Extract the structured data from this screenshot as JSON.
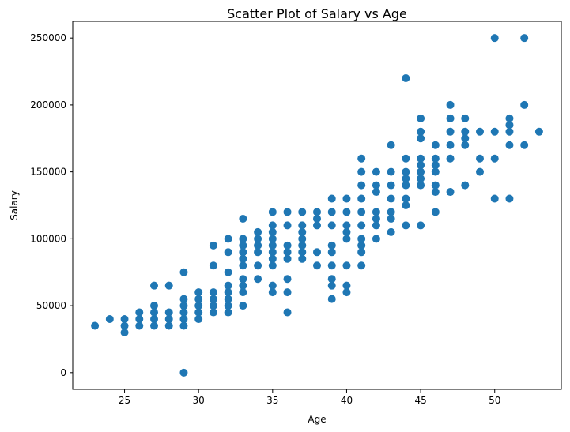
{
  "chart_data": {
    "type": "scatter",
    "title": "Scatter Plot of Salary vs Age",
    "xlabel": "Age",
    "ylabel": "Salary",
    "xlim": [
      21.5,
      54.5
    ],
    "ylim": [
      -12500,
      262500
    ],
    "xticks": [
      25,
      30,
      35,
      40,
      45,
      50
    ],
    "yticks": [
      0,
      50000,
      100000,
      150000,
      200000,
      250000
    ],
    "grid": false,
    "colors": {
      "point": "#1f77b4",
      "axis": "#000000"
    },
    "series": [
      {
        "points": [
          [
            23,
            35000
          ],
          [
            24,
            40000
          ],
          [
            25,
            30000
          ],
          [
            25,
            35000
          ],
          [
            25,
            40000
          ],
          [
            26,
            35000
          ],
          [
            26,
            40000
          ],
          [
            26,
            45000
          ],
          [
            27,
            35000
          ],
          [
            27,
            40000
          ],
          [
            27,
            45000
          ],
          [
            27,
            50000
          ],
          [
            27,
            65000
          ],
          [
            28,
            35000
          ],
          [
            28,
            40000
          ],
          [
            28,
            45000
          ],
          [
            28,
            65000
          ],
          [
            29,
            0
          ],
          [
            29,
            35000
          ],
          [
            29,
            40000
          ],
          [
            29,
            45000
          ],
          [
            29,
            50000
          ],
          [
            29,
            55000
          ],
          [
            29,
            75000
          ],
          [
            30,
            40000
          ],
          [
            30,
            45000
          ],
          [
            30,
            50000
          ],
          [
            30,
            55000
          ],
          [
            30,
            60000
          ],
          [
            31,
            45000
          ],
          [
            31,
            50000
          ],
          [
            31,
            55000
          ],
          [
            31,
            60000
          ],
          [
            31,
            80000
          ],
          [
            31,
            95000
          ],
          [
            32,
            45000
          ],
          [
            32,
            50000
          ],
          [
            32,
            55000
          ],
          [
            32,
            60000
          ],
          [
            32,
            65000
          ],
          [
            32,
            75000
          ],
          [
            32,
            90000
          ],
          [
            32,
            100000
          ],
          [
            33,
            50000
          ],
          [
            33,
            60000
          ],
          [
            33,
            65000
          ],
          [
            33,
            70000
          ],
          [
            33,
            80000
          ],
          [
            33,
            85000
          ],
          [
            33,
            90000
          ],
          [
            33,
            95000
          ],
          [
            33,
            100000
          ],
          [
            33,
            115000
          ],
          [
            34,
            70000
          ],
          [
            34,
            80000
          ],
          [
            34,
            90000
          ],
          [
            34,
            95000
          ],
          [
            34,
            100000
          ],
          [
            34,
            105000
          ],
          [
            35,
            60000
          ],
          [
            35,
            65000
          ],
          [
            35,
            80000
          ],
          [
            35,
            85000
          ],
          [
            35,
            90000
          ],
          [
            35,
            95000
          ],
          [
            35,
            100000
          ],
          [
            35,
            105000
          ],
          [
            35,
            110000
          ],
          [
            35,
            120000
          ],
          [
            36,
            45000
          ],
          [
            36,
            60000
          ],
          [
            36,
            70000
          ],
          [
            36,
            85000
          ],
          [
            36,
            90000
          ],
          [
            36,
            95000
          ],
          [
            36,
            110000
          ],
          [
            36,
            120000
          ],
          [
            37,
            85000
          ],
          [
            37,
            90000
          ],
          [
            37,
            95000
          ],
          [
            37,
            100000
          ],
          [
            37,
            105000
          ],
          [
            37,
            110000
          ],
          [
            37,
            120000
          ],
          [
            38,
            80000
          ],
          [
            38,
            90000
          ],
          [
            38,
            110000
          ],
          [
            38,
            115000
          ],
          [
            38,
            120000
          ],
          [
            39,
            55000
          ],
          [
            39,
            65000
          ],
          [
            39,
            70000
          ],
          [
            39,
            80000
          ],
          [
            39,
            90000
          ],
          [
            39,
            95000
          ],
          [
            39,
            110000
          ],
          [
            39,
            120000
          ],
          [
            39,
            130000
          ],
          [
            40,
            60000
          ],
          [
            40,
            65000
          ],
          [
            40,
            80000
          ],
          [
            40,
            100000
          ],
          [
            40,
            105000
          ],
          [
            40,
            110000
          ],
          [
            40,
            120000
          ],
          [
            40,
            130000
          ],
          [
            41,
            80000
          ],
          [
            41,
            90000
          ],
          [
            41,
            95000
          ],
          [
            41,
            100000
          ],
          [
            41,
            110000
          ],
          [
            41,
            120000
          ],
          [
            41,
            130000
          ],
          [
            41,
            140000
          ],
          [
            41,
            150000
          ],
          [
            41,
            160000
          ],
          [
            42,
            100000
          ],
          [
            42,
            110000
          ],
          [
            42,
            115000
          ],
          [
            42,
            120000
          ],
          [
            42,
            135000
          ],
          [
            42,
            140000
          ],
          [
            42,
            150000
          ],
          [
            43,
            105000
          ],
          [
            43,
            115000
          ],
          [
            43,
            120000
          ],
          [
            43,
            130000
          ],
          [
            43,
            140000
          ],
          [
            43,
            150000
          ],
          [
            43,
            170000
          ],
          [
            44,
            110000
          ],
          [
            44,
            125000
          ],
          [
            44,
            130000
          ],
          [
            44,
            140000
          ],
          [
            44,
            145000
          ],
          [
            44,
            150000
          ],
          [
            44,
            160000
          ],
          [
            44,
            220000
          ],
          [
            45,
            110000
          ],
          [
            45,
            140000
          ],
          [
            45,
            145000
          ],
          [
            45,
            150000
          ],
          [
            45,
            155000
          ],
          [
            45,
            160000
          ],
          [
            45,
            175000
          ],
          [
            45,
            180000
          ],
          [
            45,
            190000
          ],
          [
            46,
            120000
          ],
          [
            46,
            135000
          ],
          [
            46,
            140000
          ],
          [
            46,
            150000
          ],
          [
            46,
            155000
          ],
          [
            46,
            160000
          ],
          [
            46,
            170000
          ],
          [
            47,
            135000
          ],
          [
            47,
            160000
          ],
          [
            47,
            170000
          ],
          [
            47,
            180000
          ],
          [
            47,
            190000
          ],
          [
            47,
            200000
          ],
          [
            48,
            140000
          ],
          [
            48,
            170000
          ],
          [
            48,
            175000
          ],
          [
            48,
            180000
          ],
          [
            48,
            190000
          ],
          [
            49,
            150000
          ],
          [
            49,
            160000
          ],
          [
            49,
            180000
          ],
          [
            50,
            130000
          ],
          [
            50,
            160000
          ],
          [
            50,
            180000
          ],
          [
            50,
            250000
          ],
          [
            51,
            130000
          ],
          [
            51,
            170000
          ],
          [
            51,
            180000
          ],
          [
            51,
            185000
          ],
          [
            51,
            190000
          ],
          [
            52,
            170000
          ],
          [
            52,
            200000
          ],
          [
            52,
            250000
          ],
          [
            53,
            180000
          ]
        ]
      }
    ]
  }
}
